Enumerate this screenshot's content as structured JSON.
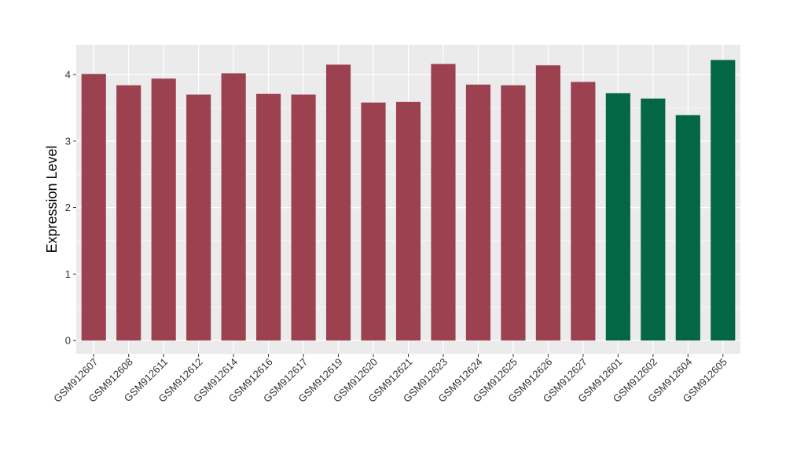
{
  "chart_data": {
    "type": "bar",
    "title": "",
    "xlabel": "",
    "ylabel": "Expression Level",
    "ylim": [
      -0.2,
      4.45
    ],
    "yticks": [
      0,
      1,
      2,
      3,
      4
    ],
    "grid": true,
    "legend": "none",
    "categories": [
      "GSM912607",
      "GSM912608",
      "GSM912611",
      "GSM912612",
      "GSM912614",
      "GSM912616",
      "GSM912617",
      "GSM912619",
      "GSM912620",
      "GSM912621",
      "GSM912623",
      "GSM912624",
      "GSM912625",
      "GSM912626",
      "GSM912627",
      "GSM912601",
      "GSM912602",
      "GSM912604",
      "GSM912605"
    ],
    "values": [
      4.01,
      3.84,
      3.94,
      3.7,
      4.02,
      3.71,
      3.7,
      4.15,
      3.58,
      3.59,
      4.16,
      3.85,
      3.84,
      4.14,
      3.89,
      3.72,
      3.64,
      3.39,
      4.22
    ],
    "group": [
      "a",
      "a",
      "a",
      "a",
      "a",
      "a",
      "a",
      "a",
      "a",
      "a",
      "a",
      "a",
      "a",
      "a",
      "a",
      "b",
      "b",
      "b",
      "b"
    ],
    "colors": {
      "a": "#9B4150",
      "b": "#036645"
    },
    "panel_background": "#EBEBEB",
    "grid_color": "#FFFFFF"
  }
}
